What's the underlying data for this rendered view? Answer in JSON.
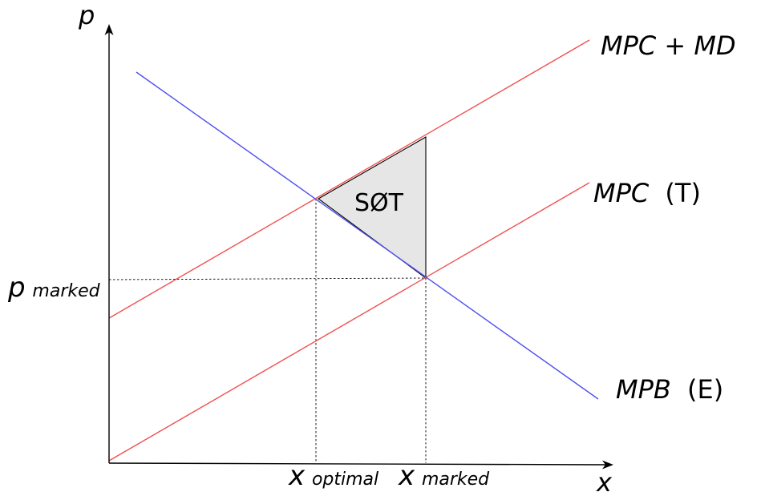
{
  "axes": {
    "y_label": "p",
    "x_label": "x"
  },
  "curves": {
    "mpc_md": {
      "label": "MPC + MD",
      "color": "#f05050"
    },
    "mpc": {
      "label_main": "MPC",
      "label_suffix": "(T)",
      "color": "#f05050"
    },
    "mpb": {
      "label_main": "MPB",
      "label_suffix": "(E)",
      "color": "#5050f0"
    }
  },
  "ticks": {
    "p_marked": {
      "base": "p",
      "sub": "marked"
    },
    "x_optimal": {
      "base": "x",
      "sub": "optimal"
    },
    "x_marked": {
      "base": "x",
      "sub": "marked"
    }
  },
  "area": {
    "label": "SØT",
    "fill": "#e6e6e6"
  }
}
